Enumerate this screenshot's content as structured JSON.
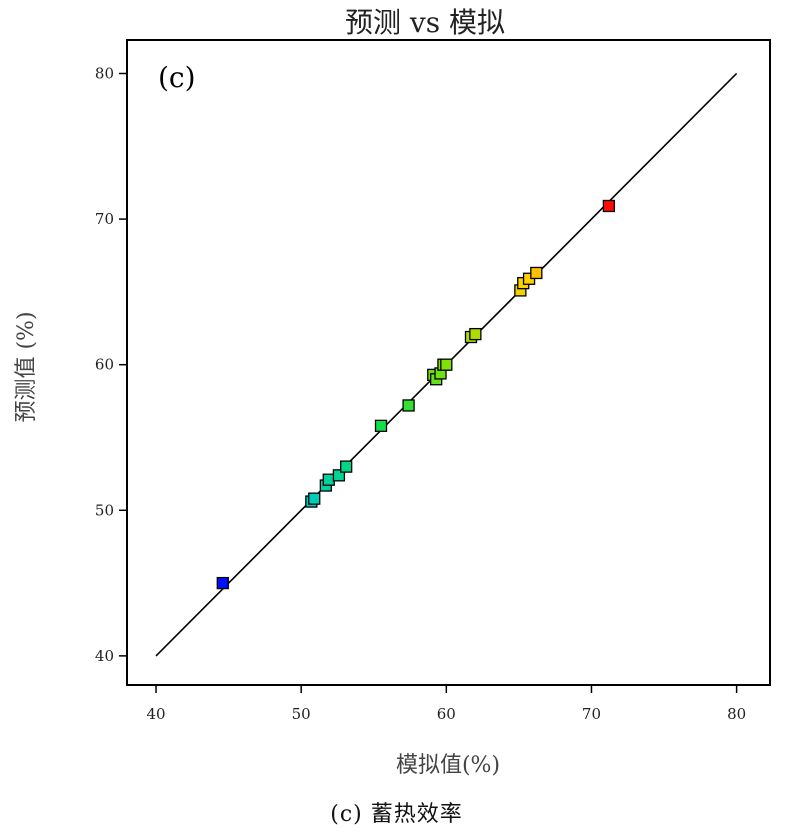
{
  "chart_data": {
    "type": "scatter",
    "title": "预测 vs 模拟",
    "panel_label": "(c)",
    "xlabel": "模拟值(%)",
    "ylabel": "预测值 (%)",
    "xlim": [
      38,
      82.3
    ],
    "ylim": [
      38,
      82.3
    ],
    "xticks": [
      40,
      50,
      60,
      70,
      80
    ],
    "yticks": [
      40,
      50,
      60,
      70,
      80
    ],
    "reference_line": {
      "from": [
        40,
        40
      ],
      "to": [
        80,
        80
      ],
      "color": "#000000"
    },
    "color_scale": {
      "min": 44.6,
      "max": 71.2,
      "stops": [
        "#0000ff",
        "#00c8d0",
        "#00e050",
        "#90e000",
        "#ffd000",
        "#ff0000"
      ]
    },
    "points": [
      {
        "x": 44.6,
        "y": 45.0
      },
      {
        "x": 50.7,
        "y": 50.6
      },
      {
        "x": 50.9,
        "y": 50.8
      },
      {
        "x": 51.7,
        "y": 51.7
      },
      {
        "x": 51.9,
        "y": 52.1
      },
      {
        "x": 52.6,
        "y": 52.4
      },
      {
        "x": 53.1,
        "y": 53.0
      },
      {
        "x": 55.5,
        "y": 55.8
      },
      {
        "x": 57.4,
        "y": 57.2
      },
      {
        "x": 59.1,
        "y": 59.3
      },
      {
        "x": 59.3,
        "y": 59.0
      },
      {
        "x": 59.6,
        "y": 59.4
      },
      {
        "x": 59.8,
        "y": 60.0
      },
      {
        "x": 60.0,
        "y": 60.0
      },
      {
        "x": 61.7,
        "y": 61.9
      },
      {
        "x": 62.0,
        "y": 62.1
      },
      {
        "x": 65.1,
        "y": 65.1
      },
      {
        "x": 65.3,
        "y": 65.6
      },
      {
        "x": 65.7,
        "y": 65.9
      },
      {
        "x": 66.2,
        "y": 66.3
      },
      {
        "x": 71.2,
        "y": 70.9
      }
    ]
  },
  "caption": "(c) 蓄热效率"
}
